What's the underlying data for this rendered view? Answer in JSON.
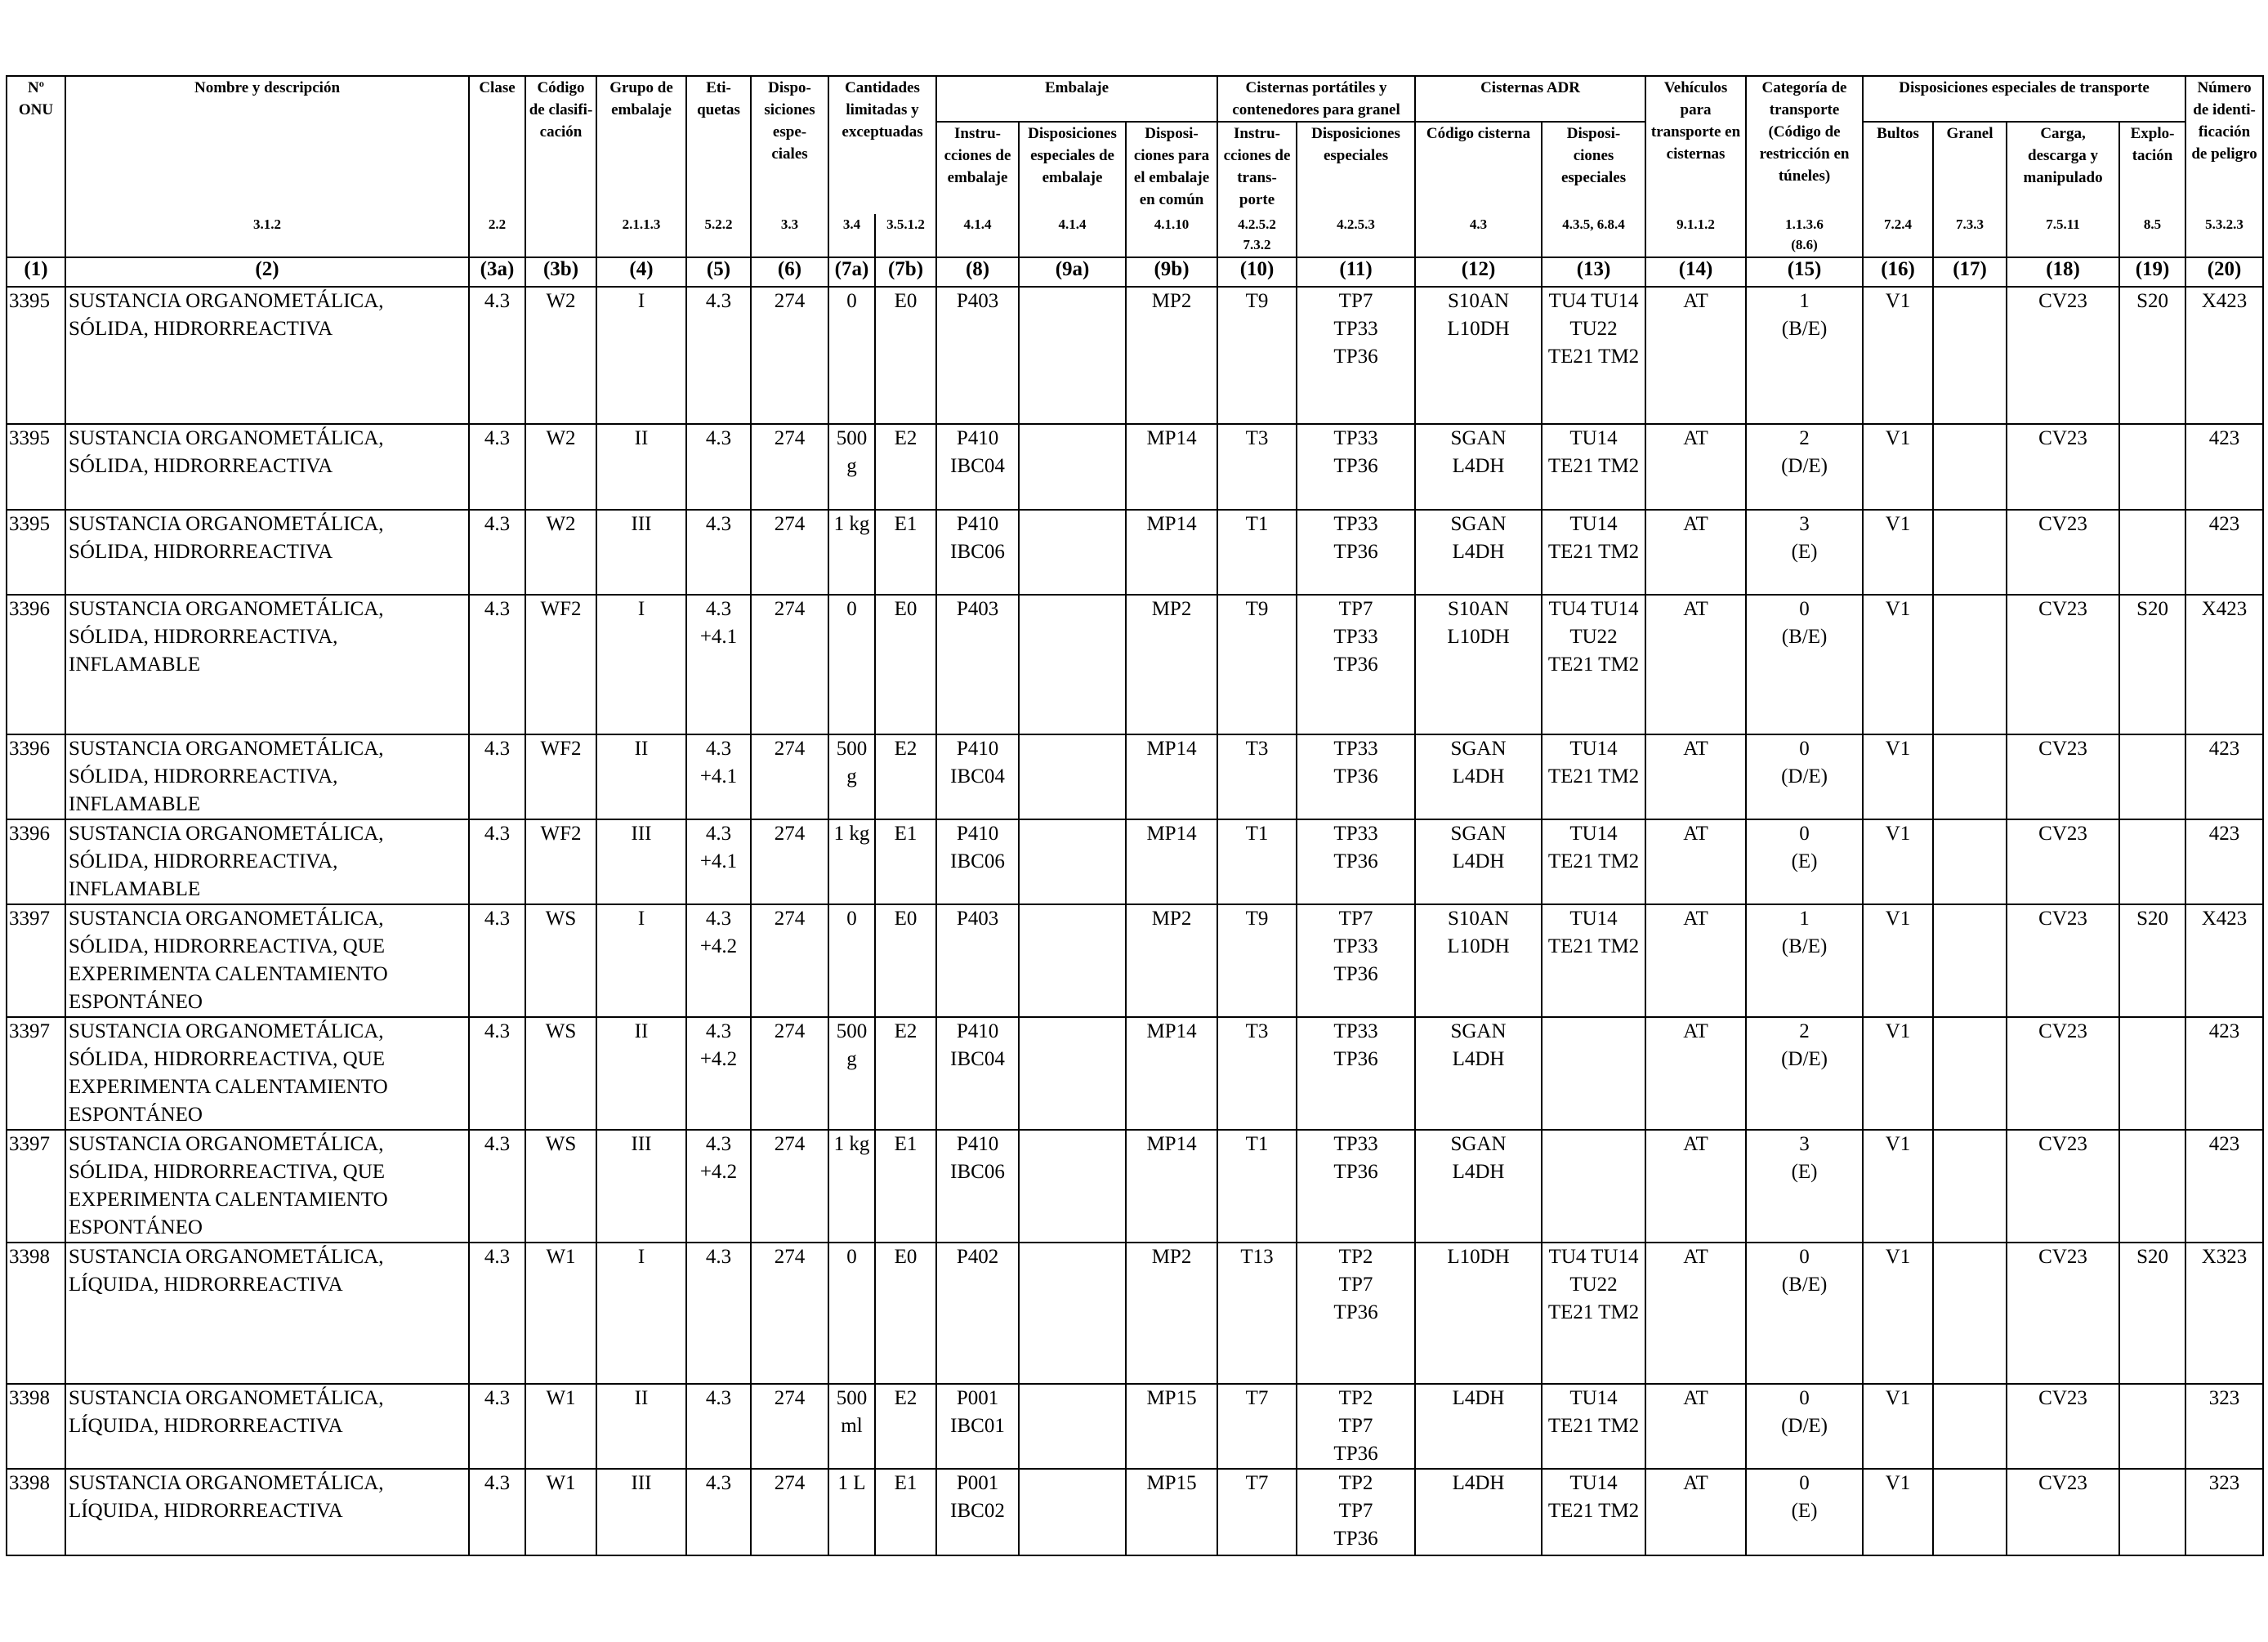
{
  "headers": {
    "un_no": [
      "Nº",
      "ONU"
    ],
    "name": [
      "Nombre y descripción"
    ],
    "class": [
      "Clase"
    ],
    "classification_code": [
      "Código",
      "de clasifi-",
      "cación"
    ],
    "packing_group": [
      "Grupo de",
      "embalaje"
    ],
    "labels": [
      "Eti-",
      "quetas"
    ],
    "special_provisions": [
      "Dispo-",
      "siciones",
      "espe-",
      "ciales"
    ],
    "limited_quantities": [
      "Cantidades",
      "limitadas y",
      "exceptuadas"
    ],
    "packaging": [
      "Embalaje"
    ],
    "packing_instructions": [
      "Instru-",
      "cciones de",
      "embalaje"
    ],
    "special_packing_provisions": [
      "Disposiciones",
      "especiales de",
      "embalaje"
    ],
    "mixed_packing": [
      "Disposi-",
      "ciones para",
      "el embalaje",
      "en común"
    ],
    "portable_tanks": [
      "Cisternas portátiles y",
      "contenedores para granel"
    ],
    "pt_instructions": [
      "Instru-",
      "cciones de",
      "trans-",
      "porte"
    ],
    "pt_special": [
      "Disposiciones",
      "especiales"
    ],
    "adr_tanks": [
      "Cisternas ADR"
    ],
    "tank_code": [
      "Código cisterna"
    ],
    "tank_special": [
      "Disposi-",
      "ciones",
      "especiales"
    ],
    "vehicle": [
      "Vehículos",
      "para",
      "transporte en",
      "cisternas"
    ],
    "transport_category": [
      "Categoría de",
      "transporte",
      "(Código de",
      "restricción en",
      "túneles)"
    ],
    "special_transport": [
      "Disposiciones especiales de transporte"
    ],
    "packages": [
      "Bultos"
    ],
    "bulk": [
      "Granel"
    ],
    "loading": [
      "Carga,",
      "descarga y",
      "manipulado"
    ],
    "operation": [
      "Explo-",
      "tación"
    ],
    "hazard_id": [
      "Número",
      "de identi-",
      "ficación",
      "de peligro"
    ]
  },
  "references": [
    "",
    "3.1.2",
    "2.2",
    "",
    "2.1.1.3",
    "5.2.2",
    "3.3",
    "3.4",
    "3.5.1.2",
    "4.1.4",
    "4.1.4",
    "4.1.10",
    "4.2.5.2\n7.3.2",
    "4.2.5.3",
    "4.3",
    "4.3.5, 6.8.4",
    "9.1.1.2",
    "1.1.3.6\n(8.6)",
    "7.2.4",
    "7.3.3",
    "7.5.11",
    "8.5",
    "5.3.2.3"
  ],
  "column_numbers": [
    "(1)",
    "(2)",
    "(3a)",
    "(3b)",
    "(4)",
    "(5)",
    "(6)",
    "(7a)",
    "(7b)",
    "(8)",
    "(9a)",
    "(9b)",
    "(10)",
    "(11)",
    "(12)",
    "(13)",
    "(14)",
    "(15)",
    "(16)",
    "(17)",
    "(18)",
    "(19)",
    "(20)"
  ],
  "rows": [
    {
      "h": 168,
      "c": [
        "3395",
        [
          "SUSTANCIA ORGANOMETÁLICA,",
          "SÓLIDA, HIDRORREACTIVA"
        ],
        "4.3",
        "W2",
        "I",
        "4.3",
        "274",
        "0",
        "E0",
        "P403",
        "",
        "MP2",
        "T9",
        [
          "TP7",
          "TP33",
          "TP36"
        ],
        [
          "S10AN",
          "L10DH"
        ],
        [
          "TU4 TU14",
          "TU22",
          "TE21 TM2"
        ],
        "AT",
        [
          "1",
          "(B/E)"
        ],
        "V1",
        "",
        "CV23",
        "S20",
        "X423"
      ]
    },
    {
      "h": 105,
      "c": [
        "3395",
        [
          "SUSTANCIA ORGANOMETÁLICA,",
          "SÓLIDA, HIDRORREACTIVA"
        ],
        "4.3",
        "W2",
        "II",
        "4.3",
        "274",
        [
          "500",
          "g"
        ],
        "E2",
        [
          "P410",
          "IBC04"
        ],
        "",
        "MP14",
        "T3",
        [
          "TP33",
          "TP36"
        ],
        [
          "SGAN",
          "L4DH"
        ],
        [
          "TU14",
          "TE21 TM2"
        ],
        "AT",
        [
          "2",
          "(D/E)"
        ],
        "V1",
        "",
        "CV23",
        "",
        "423"
      ]
    },
    {
      "h": 104,
      "c": [
        "3395",
        [
          "SUSTANCIA ORGANOMETÁLICA,",
          "SÓLIDA, HIDRORREACTIVA"
        ],
        "4.3",
        "W2",
        "III",
        "4.3",
        "274",
        "1 kg",
        "E1",
        [
          "P410",
          "IBC06"
        ],
        "",
        "MP14",
        "T1",
        [
          "TP33",
          "TP36"
        ],
        [
          "SGAN",
          "L4DH"
        ],
        [
          "TU14",
          "TE21 TM2"
        ],
        "AT",
        [
          "3",
          "(E)"
        ],
        "V1",
        "",
        "CV23",
        "",
        "423"
      ]
    },
    {
      "h": 171,
      "c": [
        "3396",
        [
          "SUSTANCIA ORGANOMETÁLICA,",
          "SÓLIDA, HIDRORREACTIVA,",
          "INFLAMABLE"
        ],
        "4.3",
        "WF2",
        "I",
        [
          "4.3",
          "+4.1"
        ],
        "274",
        "0",
        "E0",
        "P403",
        "",
        "MP2",
        "T9",
        [
          "TP7",
          "TP33",
          "TP36"
        ],
        [
          "S10AN",
          "L10DH"
        ],
        [
          "TU4 TU14",
          "TU22",
          "TE21 TM2"
        ],
        "AT",
        [
          "0",
          "(B/E)"
        ],
        "V1",
        "",
        "CV23",
        "S20",
        "X423"
      ]
    },
    {
      "h": 101,
      "c": [
        "3396",
        [
          "SUSTANCIA ORGANOMETÁLICA,",
          "SÓLIDA, HIDRORREACTIVA,",
          "INFLAMABLE"
        ],
        "4.3",
        "WF2",
        "II",
        [
          "4.3",
          "+4.1"
        ],
        "274",
        [
          "500",
          "g"
        ],
        "E2",
        [
          "P410",
          "IBC04"
        ],
        "",
        "MP14",
        "T3",
        [
          "TP33",
          "TP36"
        ],
        [
          "SGAN",
          "L4DH"
        ],
        [
          "TU14",
          "TE21 TM2"
        ],
        "AT",
        [
          "0",
          "(D/E)"
        ],
        "V1",
        "",
        "CV23",
        "",
        "423"
      ]
    },
    {
      "h": 104,
      "c": [
        "3396",
        [
          "SUSTANCIA ORGANOMETÁLICA,",
          "SÓLIDA, HIDRORREACTIVA,",
          "INFLAMABLE"
        ],
        "4.3",
        "WF2",
        "III",
        [
          "4.3",
          "+4.1"
        ],
        "274",
        "1 kg",
        "E1",
        [
          "P410",
          "IBC06"
        ],
        "",
        "MP14",
        "T1",
        [
          "TP33",
          "TP36"
        ],
        [
          "SGAN",
          "L4DH"
        ],
        [
          "TU14",
          "TE21 TM2"
        ],
        "AT",
        [
          "0",
          "(E)"
        ],
        "V1",
        "",
        "CV23",
        "",
        "423"
      ]
    },
    {
      "h": 137,
      "c": [
        "3397",
        [
          "SUSTANCIA ORGANOMETÁLICA,",
          "SÓLIDA, HIDRORREACTIVA, QUE",
          "EXPERIMENTA CALENTAMIENTO",
          "ESPONTÁNEO"
        ],
        "4.3",
        "WS",
        "I",
        [
          "4.3",
          "+4.2"
        ],
        "274",
        "0",
        "E0",
        "P403",
        "",
        "MP2",
        "T9",
        [
          "TP7",
          "TP33",
          "TP36"
        ],
        [
          "S10AN",
          "L10DH"
        ],
        [
          "TU14",
          "TE21 TM2"
        ],
        "AT",
        [
          "1",
          "(B/E)"
        ],
        "V1",
        "",
        "CV23",
        "S20",
        "X423"
      ]
    },
    {
      "h": 135,
      "c": [
        "3397",
        [
          "SUSTANCIA ORGANOMETÁLICA,",
          "SÓLIDA, HIDRORREACTIVA, QUE",
          "EXPERIMENTA CALENTAMIENTO",
          "ESPONTÁNEO"
        ],
        "4.3",
        "WS",
        "II",
        [
          "4.3",
          "+4.2"
        ],
        "274",
        [
          "500",
          "g"
        ],
        "E2",
        [
          "P410",
          "IBC04"
        ],
        "",
        "MP14",
        "T3",
        [
          "TP33",
          "TP36"
        ],
        [
          "SGAN",
          "L4DH"
        ],
        "",
        "AT",
        [
          "2",
          "(D/E)"
        ],
        "V1",
        "",
        "CV23",
        "",
        "423"
      ]
    },
    {
      "h": 137,
      "c": [
        "3397",
        [
          "SUSTANCIA ORGANOMETÁLICA,",
          "SÓLIDA, HIDRORREACTIVA, QUE",
          "EXPERIMENTA CALENTAMIENTO",
          "ESPONTÁNEO"
        ],
        "4.3",
        "WS",
        "III",
        [
          "4.3",
          "+4.2"
        ],
        "274",
        "1 kg",
        "E1",
        [
          "P410",
          "IBC06"
        ],
        "",
        "MP14",
        "T1",
        [
          "TP33",
          "TP36"
        ],
        [
          "SGAN",
          "L4DH"
        ],
        "",
        "AT",
        [
          "3",
          "(E)"
        ],
        "V1",
        "",
        "CV23",
        "",
        "423"
      ]
    },
    {
      "h": 173,
      "c": [
        "3398",
        [
          "SUSTANCIA ORGANOMETÁLICA,",
          "LÍQUIDA, HIDRORREACTIVA"
        ],
        "4.3",
        "W1",
        "I",
        "4.3",
        "274",
        "0",
        "E0",
        "P402",
        "",
        "MP2",
        "T13",
        [
          "TP2",
          "TP7",
          "TP36"
        ],
        "L10DH",
        [
          "TU4 TU14",
          "TU22",
          "TE21 TM2"
        ],
        "AT",
        [
          "0",
          "(B/E)"
        ],
        "V1",
        "",
        "CV23",
        "S20",
        "X323"
      ]
    },
    {
      "h": 104,
      "c": [
        "3398",
        [
          "SUSTANCIA ORGANOMETÁLICA,",
          "LÍQUIDA, HIDRORREACTIVA"
        ],
        "4.3",
        "W1",
        "II",
        "4.3",
        "274",
        [
          "500",
          "ml"
        ],
        "E2",
        [
          "P001",
          "IBC01"
        ],
        "",
        "MP15",
        "T7",
        [
          "TP2",
          "TP7",
          "TP36"
        ],
        "L4DH",
        [
          "TU14",
          "TE21 TM2"
        ],
        "AT",
        [
          "0",
          "(D/E)"
        ],
        "V1",
        "",
        "CV23",
        "",
        "323"
      ]
    },
    {
      "h": 106,
      "c": [
        "3398",
        [
          "SUSTANCIA ORGANOMETÁLICA,",
          "LÍQUIDA, HIDRORREACTIVA"
        ],
        "4.3",
        "W1",
        "III",
        "4.3",
        "274",
        "1 L",
        "E1",
        [
          "P001",
          "IBC02"
        ],
        "",
        "MP15",
        "T7",
        [
          "TP2",
          "TP7",
          "TP36"
        ],
        "L4DH",
        [
          "TU14",
          "TE21 TM2"
        ],
        "AT",
        [
          "0",
          "(E)"
        ],
        "V1",
        "",
        "CV23",
        "",
        "323"
      ]
    }
  ]
}
